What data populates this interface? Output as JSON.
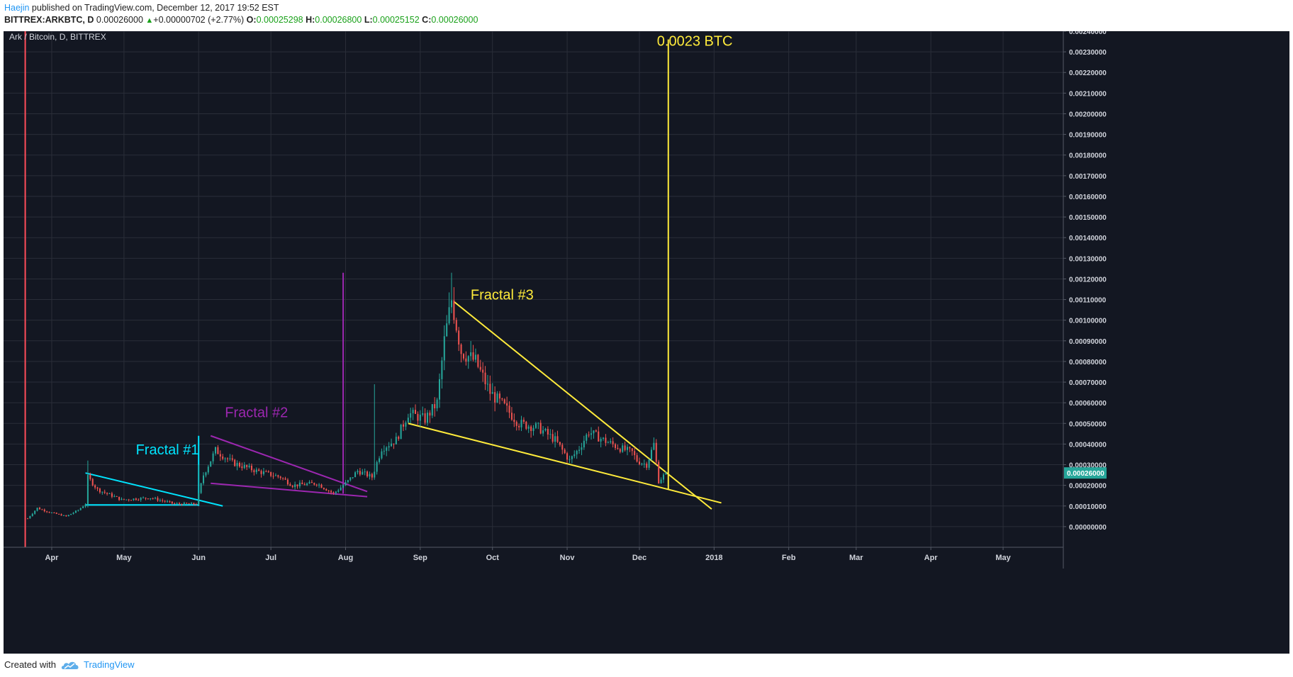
{
  "header": {
    "author": "Haejin",
    "published_text": " published on TradingView.com, December 12, 2017 19:52 EST",
    "symbol_line": "BITTREX:ARKBTC, D",
    "price": "0.00026000",
    "change_arrow": "▲",
    "change": "+0.00000702 (+2.77%)",
    "o_label": "O:",
    "o_value": "0.00025298",
    "h_label": "H:",
    "h_value": "0.00026800",
    "l_label": "L:",
    "l_value": "0.00025152",
    "c_label": "C:",
    "c_value": "0.00026000"
  },
  "footer": {
    "created_with": "Created with",
    "brand": "TradingView"
  },
  "colors": {
    "background": "#131722",
    "grid": "#2a2e39",
    "candle_up": "#26a69a",
    "candle_down": "#ef5350",
    "fractal1": "#00e5ff",
    "fractal2": "#9c27b0",
    "fractal3": "#ffeb3b",
    "start_line": "#ff4d5a",
    "price_badge": "#26a69a"
  },
  "chart_data": {
    "type": "candlestick",
    "title": "Ark / Bitcoin, D, BITTREX",
    "symbol": "BITTREX:ARKBTC",
    "timeframe": "D",
    "x_range": [
      "2017-03-12",
      "2018-05-26"
    ],
    "y_range": [
      -0.0001,
      0.0024
    ],
    "y_ticks": [
      "0.00000000",
      "0.00010000",
      "0.00020000",
      "0.00030000",
      "0.00040000",
      "0.00050000",
      "0.00060000",
      "0.00070000",
      "0.00080000",
      "0.00090000",
      "0.00100000",
      "0.00110000",
      "0.00120000",
      "0.00130000",
      "0.00140000",
      "0.00150000",
      "0.00160000",
      "0.00170000",
      "0.00180000",
      "0.00190000",
      "0.00200000",
      "0.00210000",
      "0.00220000",
      "0.00230000",
      "0.00240000"
    ],
    "x_ticks": [
      {
        "label": "Apr",
        "date": "2017-04-01"
      },
      {
        "label": "May",
        "date": "2017-05-01"
      },
      {
        "label": "Jun",
        "date": "2017-06-01"
      },
      {
        "label": "Jul",
        "date": "2017-07-01"
      },
      {
        "label": "Aug",
        "date": "2017-08-01"
      },
      {
        "label": "Sep",
        "date": "2017-09-01"
      },
      {
        "label": "Oct",
        "date": "2017-10-01"
      },
      {
        "label": "Nov",
        "date": "2017-11-01"
      },
      {
        "label": "Dec",
        "date": "2017-12-01"
      },
      {
        "label": "2018",
        "date": "2018-01-01"
      },
      {
        "label": "Feb",
        "date": "2018-02-01"
      },
      {
        "label": "Mar",
        "date": "2018-03-01"
      },
      {
        "label": "Apr",
        "date": "2018-04-01"
      },
      {
        "label": "May",
        "date": "2018-05-01"
      }
    ],
    "last_price_label": "0.00026000",
    "last_price": 0.00026,
    "candle_keypoints": [
      [
        "2017-03-22",
        4e-05
      ],
      [
        "2017-03-26",
        9e-05
      ],
      [
        "2017-03-31",
        7e-05
      ],
      [
        "2017-04-07",
        5e-05
      ],
      [
        "2017-04-12",
        8e-05
      ],
      [
        "2017-04-15",
        0.00011
      ],
      [
        "2017-04-16",
        0.00024
      ],
      [
        "2017-04-20",
        0.00018
      ],
      [
        "2017-04-30",
        0.00013
      ],
      [
        "2017-05-12",
        0.00014
      ],
      [
        "2017-05-22",
        0.00011
      ],
      [
        "2017-05-31",
        0.00011
      ],
      [
        "2017-06-03",
        0.00025
      ],
      [
        "2017-06-08",
        0.00037
      ],
      [
        "2017-06-15",
        0.00031
      ],
      [
        "2017-06-25",
        0.00027
      ],
      [
        "2017-07-05",
        0.00024
      ],
      [
        "2017-07-10",
        0.0002
      ],
      [
        "2017-07-20",
        0.00021
      ],
      [
        "2017-07-27",
        0.00016
      ],
      [
        "2017-08-02",
        0.00022
      ],
      [
        "2017-08-06",
        0.00027
      ],
      [
        "2017-08-12",
        0.00024
      ],
      [
        "2017-08-16",
        0.00038
      ],
      [
        "2017-08-22",
        0.00042
      ],
      [
        "2017-08-27",
        0.00055
      ],
      [
        "2017-09-03",
        0.00052
      ],
      [
        "2017-09-08",
        0.0006
      ],
      [
        "2017-09-11",
        0.0009
      ],
      [
        "2017-09-14",
        0.0011
      ],
      [
        "2017-09-18",
        0.00085
      ],
      [
        "2017-09-24",
        0.0008
      ],
      [
        "2017-09-30",
        0.00065
      ],
      [
        "2017-10-06",
        0.00058
      ],
      [
        "2017-10-12",
        0.0005
      ],
      [
        "2017-10-20",
        0.00048
      ],
      [
        "2017-10-27",
        0.00042
      ],
      [
        "2017-11-02",
        0.00032
      ],
      [
        "2017-11-06",
        0.00038
      ],
      [
        "2017-11-10",
        0.00046
      ],
      [
        "2017-11-16",
        0.00042
      ],
      [
        "2017-11-23",
        0.00038
      ],
      [
        "2017-11-28",
        0.00036
      ],
      [
        "2017-11-30",
        0.00032
      ],
      [
        "2017-12-04",
        0.0003
      ],
      [
        "2017-12-07",
        0.0004
      ],
      [
        "2017-12-09",
        0.00022
      ],
      [
        "2017-12-12",
        0.00026
      ]
    ],
    "spikes": [
      [
        "2017-04-16",
        0.00032
      ],
      [
        "2017-06-01",
        0.0003
      ],
      [
        "2017-08-13",
        0.00069
      ],
      [
        "2017-09-14",
        0.00123
      ],
      [
        "2017-09-15",
        0.00116
      ]
    ],
    "annotations": [
      {
        "type": "vline",
        "date": "2017-03-21",
        "y1": -0.0001,
        "y2": 0.0024,
        "color": "#ff4d5a"
      },
      {
        "type": "line",
        "from": [
          "2017-04-15",
          0.00026
        ],
        "to": [
          "2017-06-11",
          0.0001
        ],
        "color": "#00e5ff"
      },
      {
        "type": "line",
        "from": [
          "2017-04-15",
          0.000105
        ],
        "to": [
          "2017-06-01",
          0.000105
        ],
        "color": "#00e5ff"
      },
      {
        "type": "vline",
        "date": "2017-06-01",
        "y1": 0.0001,
        "y2": 0.00044,
        "color": "#00e5ff"
      },
      {
        "type": "text",
        "text": "Fractal #1",
        "at": [
          "2017-05-19",
          0.00035
        ],
        "color": "#00e5ff"
      },
      {
        "type": "line",
        "from": [
          "2017-06-06",
          0.00044
        ],
        "to": [
          "2017-08-10",
          0.00017
        ],
        "color": "#9c27b0"
      },
      {
        "type": "line",
        "from": [
          "2017-06-06",
          0.00021
        ],
        "to": [
          "2017-08-10",
          0.000145
        ],
        "color": "#9c27b0"
      },
      {
        "type": "vline",
        "date": "2017-07-31",
        "y1": 0.00016,
        "y2": 0.00123,
        "color": "#9c27b0"
      },
      {
        "type": "text",
        "text": "Fractal #2",
        "at": [
          "2017-06-25",
          0.00053
        ],
        "color": "#9c27b0"
      },
      {
        "type": "line",
        "from": [
          "2017-09-15",
          0.00109
        ],
        "to": [
          "2017-12-31",
          8.5e-05
        ],
        "color": "#ffeb3b"
      },
      {
        "type": "line",
        "from": [
          "2017-08-27",
          0.0005
        ],
        "to": [
          "2018-01-04",
          0.000115
        ],
        "color": "#ffeb3b"
      },
      {
        "type": "vline",
        "date": "2017-12-13",
        "y1": 0.00018,
        "y2": 0.00236,
        "color": "#ffeb3b"
      },
      {
        "type": "text",
        "text": "Fractal #3",
        "at": [
          "2017-10-05",
          0.0011
        ],
        "color": "#ffeb3b"
      },
      {
        "type": "text",
        "text": "0.0023 BTC",
        "at": [
          "2017-12-24",
          0.00233
        ],
        "color": "#ffeb3b"
      }
    ]
  }
}
